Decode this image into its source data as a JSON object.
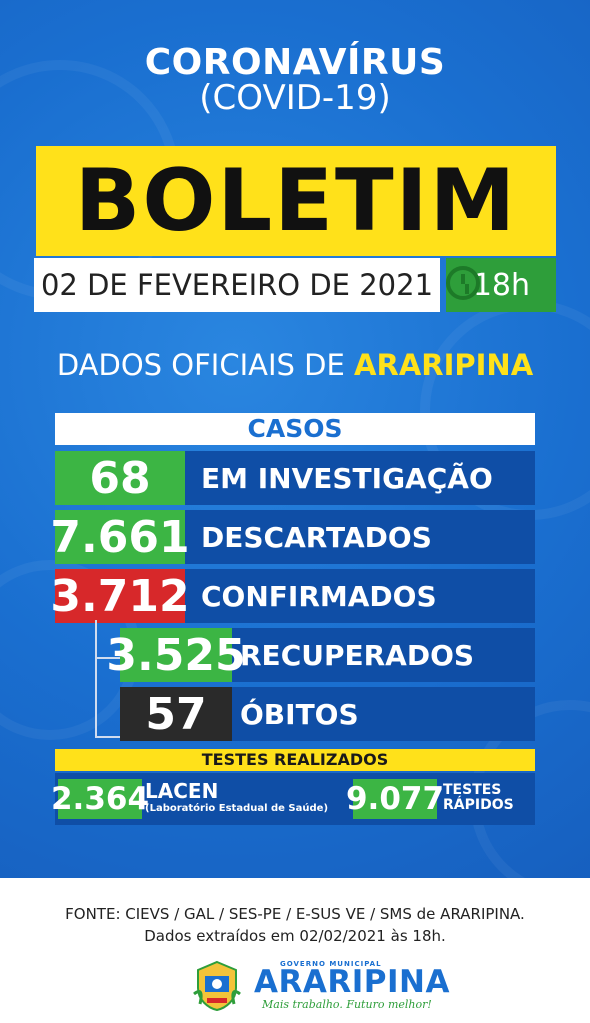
{
  "header": {
    "title": "CORONAVÍRUS",
    "subtitle": "(COVID-19)",
    "banner": "BOLETIM",
    "date": "02 DE FEVEREIRO DE 2021",
    "hour": "18h"
  },
  "dados": {
    "prefix": "DADOS OFICIAIS DE",
    "city": "ARARIPINA"
  },
  "casos": {
    "heading": "CASOS",
    "rows": [
      {
        "value": "68",
        "label": "EM INVESTIGAÇÃO"
      },
      {
        "value": "7.661",
        "label": "DESCARTADOS"
      },
      {
        "value": "3.712",
        "label": "CONFIRMADOS"
      },
      {
        "value": "3.525",
        "label": "RECUPERADOS"
      },
      {
        "value": "57",
        "label": "ÓBITOS"
      }
    ]
  },
  "testes": {
    "heading": "TESTES REALIZADOS",
    "lacen_value": "2.364",
    "lacen_label": "LACEN",
    "lacen_detail": "(Laboratório Estadual de Saúde)",
    "rapidos_value": "9.077",
    "rapidos_label1": "TESTES",
    "rapidos_label2": "RÁPIDOS"
  },
  "footer": {
    "source": "FONTE: CIEVS / GAL / SES-PE / E-SUS VE / SMS de ARARIPINA.",
    "extracted": "Dados extraídos em 02/02/2021 às 18h.",
    "logo_top": "GOVERNO MUNICIPAL",
    "logo_name": "ARARIPINA",
    "logo_slogan": "Mais trabalho. Futuro melhor!"
  },
  "colors": {
    "background": "#1a6fd0",
    "banner": "#ffe11a",
    "green": "#3cb544",
    "red": "#d7282a",
    "dark": "#2a2a2a"
  }
}
